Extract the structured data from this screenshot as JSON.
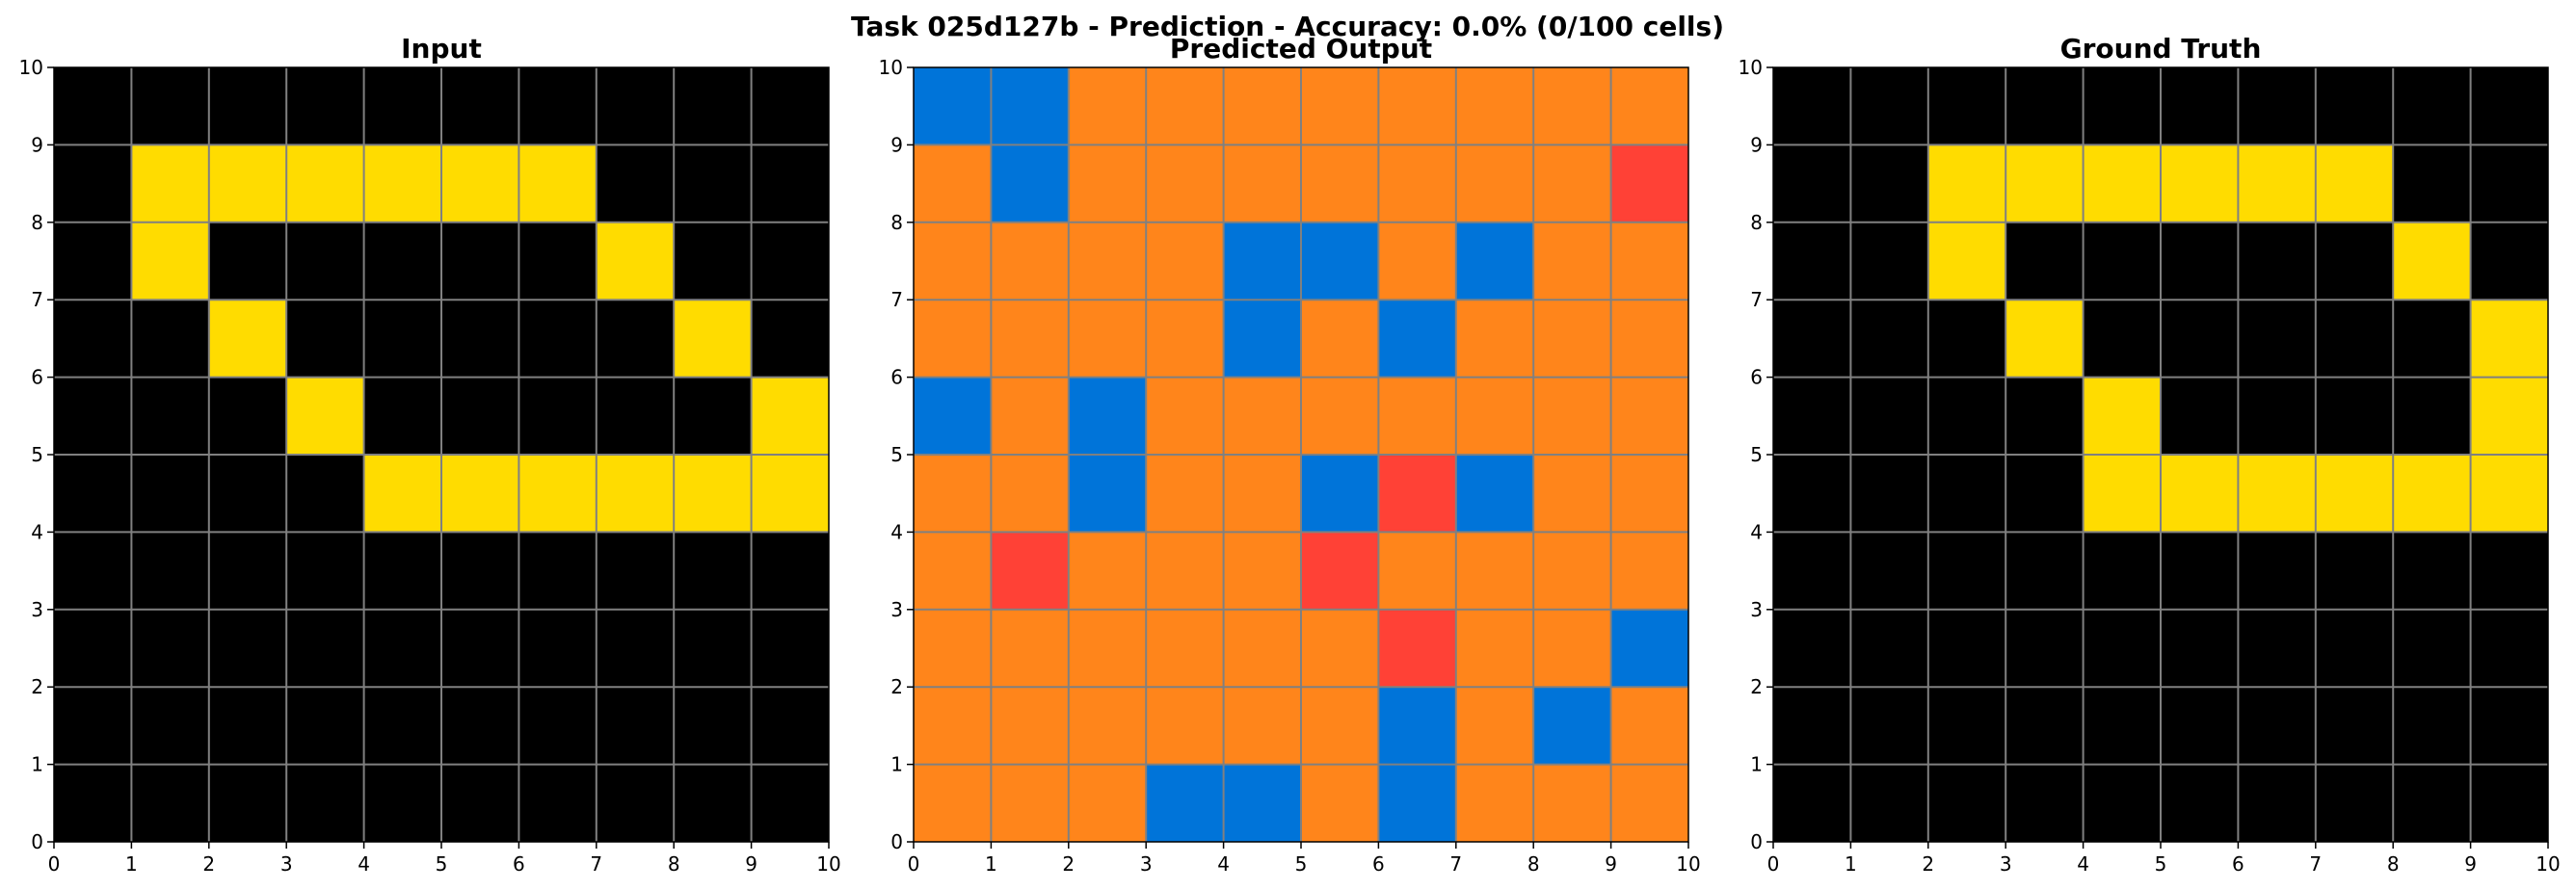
{
  "figure_title": "Task 025d127b - Prediction - Accuracy: 0.0% (0/100 cells)",
  "palette": {
    "0": "#000000",
    "1": "#0074D9",
    "2": "#FF4136",
    "4": "#FFDC00",
    "7": "#FF851B"
  },
  "chart_data": [
    {
      "type": "heatmap",
      "title": "Input",
      "xlim": [
        0,
        10
      ],
      "ylim": [
        0,
        10
      ],
      "xticks": [
        "0",
        "1",
        "2",
        "3",
        "4",
        "5",
        "6",
        "7",
        "8",
        "9",
        "10"
      ],
      "yticks": [
        "0",
        "1",
        "2",
        "3",
        "4",
        "5",
        "6",
        "7",
        "8",
        "9",
        "10"
      ],
      "grid": true,
      "rows_top_to_bottom": [
        [
          0,
          0,
          0,
          0,
          0,
          0,
          0,
          0,
          0,
          0
        ],
        [
          0,
          4,
          4,
          4,
          4,
          4,
          4,
          0,
          0,
          0
        ],
        [
          0,
          4,
          0,
          0,
          0,
          0,
          0,
          4,
          0,
          0
        ],
        [
          0,
          0,
          4,
          0,
          0,
          0,
          0,
          0,
          4,
          0
        ],
        [
          0,
          0,
          0,
          4,
          0,
          0,
          0,
          0,
          0,
          4
        ],
        [
          0,
          0,
          0,
          0,
          4,
          4,
          4,
          4,
          4,
          4
        ],
        [
          0,
          0,
          0,
          0,
          0,
          0,
          0,
          0,
          0,
          0
        ],
        [
          0,
          0,
          0,
          0,
          0,
          0,
          0,
          0,
          0,
          0
        ],
        [
          0,
          0,
          0,
          0,
          0,
          0,
          0,
          0,
          0,
          0
        ],
        [
          0,
          0,
          0,
          0,
          0,
          0,
          0,
          0,
          0,
          0
        ]
      ]
    },
    {
      "type": "heatmap",
      "title": "Predicted Output",
      "xlim": [
        0,
        10
      ],
      "ylim": [
        0,
        10
      ],
      "xticks": [
        "0",
        "1",
        "2",
        "3",
        "4",
        "5",
        "6",
        "7",
        "8",
        "9",
        "10"
      ],
      "yticks": [
        "0",
        "1",
        "2",
        "3",
        "4",
        "5",
        "6",
        "7",
        "8",
        "9",
        "10"
      ],
      "grid": true,
      "rows_top_to_bottom": [
        [
          1,
          1,
          7,
          7,
          7,
          7,
          7,
          7,
          7,
          7
        ],
        [
          7,
          1,
          7,
          7,
          7,
          7,
          7,
          7,
          7,
          2
        ],
        [
          7,
          7,
          7,
          7,
          1,
          1,
          7,
          1,
          7,
          7
        ],
        [
          7,
          7,
          7,
          7,
          1,
          7,
          1,
          7,
          7,
          7
        ],
        [
          1,
          7,
          1,
          7,
          7,
          7,
          7,
          7,
          7,
          7
        ],
        [
          7,
          7,
          1,
          7,
          7,
          1,
          2,
          1,
          7,
          7
        ],
        [
          7,
          2,
          7,
          7,
          7,
          2,
          7,
          7,
          7,
          7
        ],
        [
          7,
          7,
          7,
          7,
          7,
          7,
          2,
          7,
          7,
          1
        ],
        [
          7,
          7,
          7,
          7,
          7,
          7,
          1,
          7,
          1,
          7
        ],
        [
          7,
          7,
          7,
          1,
          1,
          7,
          1,
          7,
          7,
          7
        ]
      ]
    },
    {
      "type": "heatmap",
      "title": "Ground Truth",
      "xlim": [
        0,
        10
      ],
      "ylim": [
        0,
        10
      ],
      "xticks": [
        "0",
        "1",
        "2",
        "3",
        "4",
        "5",
        "6",
        "7",
        "8",
        "9",
        "10"
      ],
      "yticks": [
        "0",
        "1",
        "2",
        "3",
        "4",
        "5",
        "6",
        "7",
        "8",
        "9",
        "10"
      ],
      "grid": true,
      "rows_top_to_bottom": [
        [
          0,
          0,
          0,
          0,
          0,
          0,
          0,
          0,
          0,
          0
        ],
        [
          0,
          0,
          4,
          4,
          4,
          4,
          4,
          4,
          0,
          0
        ],
        [
          0,
          0,
          4,
          0,
          0,
          0,
          0,
          0,
          4,
          0
        ],
        [
          0,
          0,
          0,
          4,
          0,
          0,
          0,
          0,
          0,
          4
        ],
        [
          0,
          0,
          0,
          0,
          4,
          0,
          0,
          0,
          0,
          4
        ],
        [
          0,
          0,
          0,
          0,
          4,
          4,
          4,
          4,
          4,
          4
        ],
        [
          0,
          0,
          0,
          0,
          0,
          0,
          0,
          0,
          0,
          0
        ],
        [
          0,
          0,
          0,
          0,
          0,
          0,
          0,
          0,
          0,
          0
        ],
        [
          0,
          0,
          0,
          0,
          0,
          0,
          0,
          0,
          0,
          0
        ],
        [
          0,
          0,
          0,
          0,
          0,
          0,
          0,
          0,
          0,
          0
        ]
      ]
    }
  ]
}
